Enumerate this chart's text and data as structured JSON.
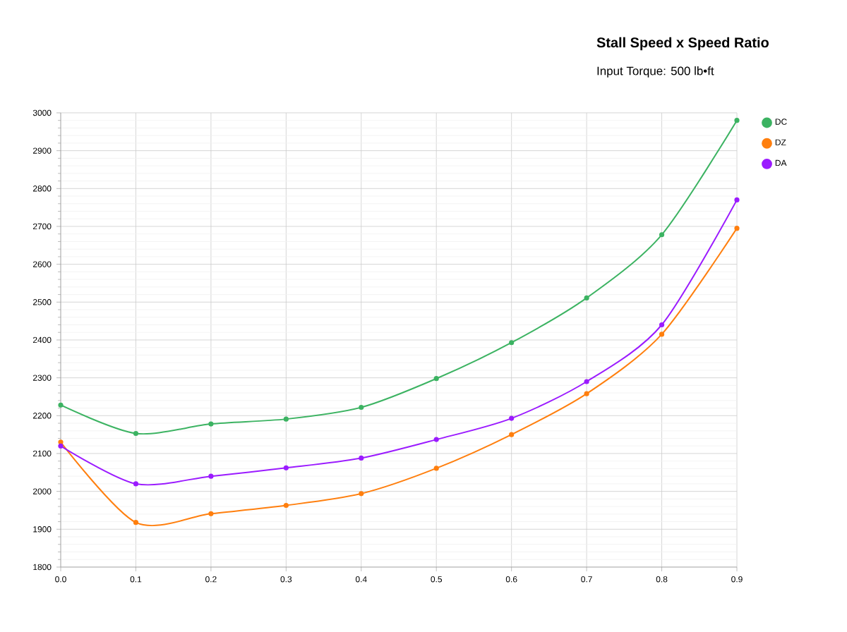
{
  "chart_data": {
    "type": "line",
    "title": "Stall Speed x Speed Ratio",
    "subtitle": "Input Torque: 500 lb•ft",
    "x": [
      0,
      0.1,
      0.2,
      0.3,
      0.4,
      0.5,
      0.6,
      0.7,
      0.8,
      0.9
    ],
    "series": [
      {
        "name": "DC",
        "color": "#3cb362",
        "values": [
          2228,
          2153,
          2178,
          2191,
          2222,
          2298,
          2393,
          2511,
          2678,
          2980
        ]
      },
      {
        "name": "DZ",
        "color": "#ff7f0e",
        "values": [
          2130,
          1918,
          1941,
          1963,
          1994,
          2061,
          2150,
          2258,
          2415,
          2695
        ]
      },
      {
        "name": "DA",
        "color": "#9b1bff",
        "values": [
          2120,
          2020,
          2040,
          2062,
          2088,
          2137,
          2193,
          2290,
          2440,
          2770
        ]
      }
    ],
    "xlim": [
      0,
      0.9
    ],
    "ylim": [
      1800,
      3000
    ],
    "xticks": [
      {
        "value": 0,
        "label": "0.0"
      },
      0.1,
      0.2,
      0.3,
      0.4,
      0.5,
      0.6,
      0.7,
      0.8,
      0.9
    ],
    "yticks": [
      1800,
      1900,
      2000,
      2100,
      2200,
      2300,
      2400,
      2500,
      2600,
      2700,
      2800,
      2900,
      3000
    ],
    "grid": true,
    "legend": "top right",
    "marker": "circle",
    "line_style": "solid"
  }
}
